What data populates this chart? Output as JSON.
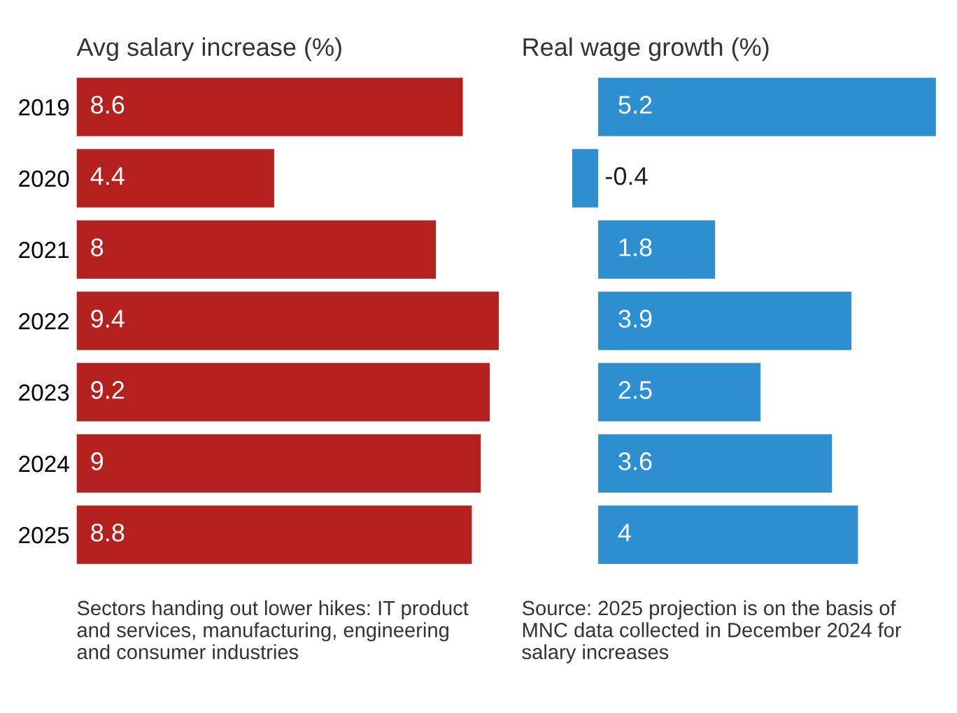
{
  "chart_data": [
    {
      "type": "bar",
      "orientation": "horizontal",
      "title": "Avg salary increase (%)",
      "categories": [
        "2019",
        "2020",
        "2021",
        "2022",
        "2023",
        "2024",
        "2025"
      ],
      "values": [
        8.6,
        4.4,
        8,
        9.4,
        9.2,
        9,
        8.8
      ],
      "color": "#b5211e",
      "data_labels": true,
      "grid": false,
      "annotations": [
        "Sectors handing out lower hikes: IT product and services, manufacturing, engineering and consumer industries"
      ]
    },
    {
      "type": "bar",
      "orientation": "horizontal",
      "title": "Real wage growth (%)",
      "categories": [
        "2019",
        "2020",
        "2021",
        "2022",
        "2023",
        "2024",
        "2025"
      ],
      "values": [
        5.2,
        -0.4,
        1.8,
        3.9,
        2.5,
        3.6,
        4
      ],
      "color": "#2e8fd0",
      "data_labels": true,
      "grid": false,
      "tick_labels": false,
      "annotations": [
        "Source: 2025 projection is on the basis of MNC data collected in December 2024 for salary increases"
      ]
    }
  ]
}
